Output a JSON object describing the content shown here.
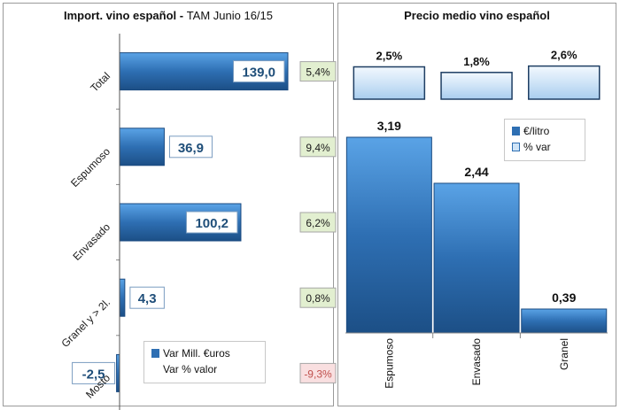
{
  "chart_data": [
    {
      "type": "bar",
      "orientation": "horizontal",
      "title": "Import. vino español",
      "subtitle": "TAM Junio 16/15",
      "categories": [
        "Total",
        "Espumoso",
        "Envasado",
        "Granel y > 2l.",
        "Mosto"
      ],
      "series": [
        {
          "name": "Var Mill. €uros",
          "values": [
            139.0,
            36.9,
            100.2,
            4.3,
            -2.5
          ],
          "labels": [
            "139,0",
            "36,9",
            "100,2",
            "4,3",
            "-2,5"
          ]
        },
        {
          "name": "Var % valor",
          "values": [
            5.4,
            9.4,
            6.2,
            0.8,
            -9.3
          ],
          "labels": [
            "5,4%",
            "9,4%",
            "6,2%",
            "0,8%",
            "-9,3%"
          ]
        }
      ],
      "colors": {
        "bar": "#2e6fb3",
        "positive_box": "#e2efd0",
        "negative_box": "#f9dfe0",
        "value_text": "#1f4e79"
      },
      "grid": false,
      "legend": "bottom-right"
    },
    {
      "type": "bar",
      "title": "Precio medio vino español",
      "categories": [
        "Espumoso",
        "Envasado",
        "Granel"
      ],
      "series": [
        {
          "name": "€/litro",
          "values": [
            3.19,
            2.44,
            0.39
          ],
          "labels": [
            "3,19",
            "2,44",
            "0,39"
          ]
        },
        {
          "name": "% var",
          "values": [
            2.5,
            1.8,
            2.6
          ],
          "labels": [
            "2,5%",
            "1,8%",
            "2,6%"
          ]
        }
      ],
      "colors": {
        "bar": "#2e6fb3",
        "var_box": "#cfe4f7"
      },
      "grid": false,
      "legend": "top-right"
    }
  ]
}
